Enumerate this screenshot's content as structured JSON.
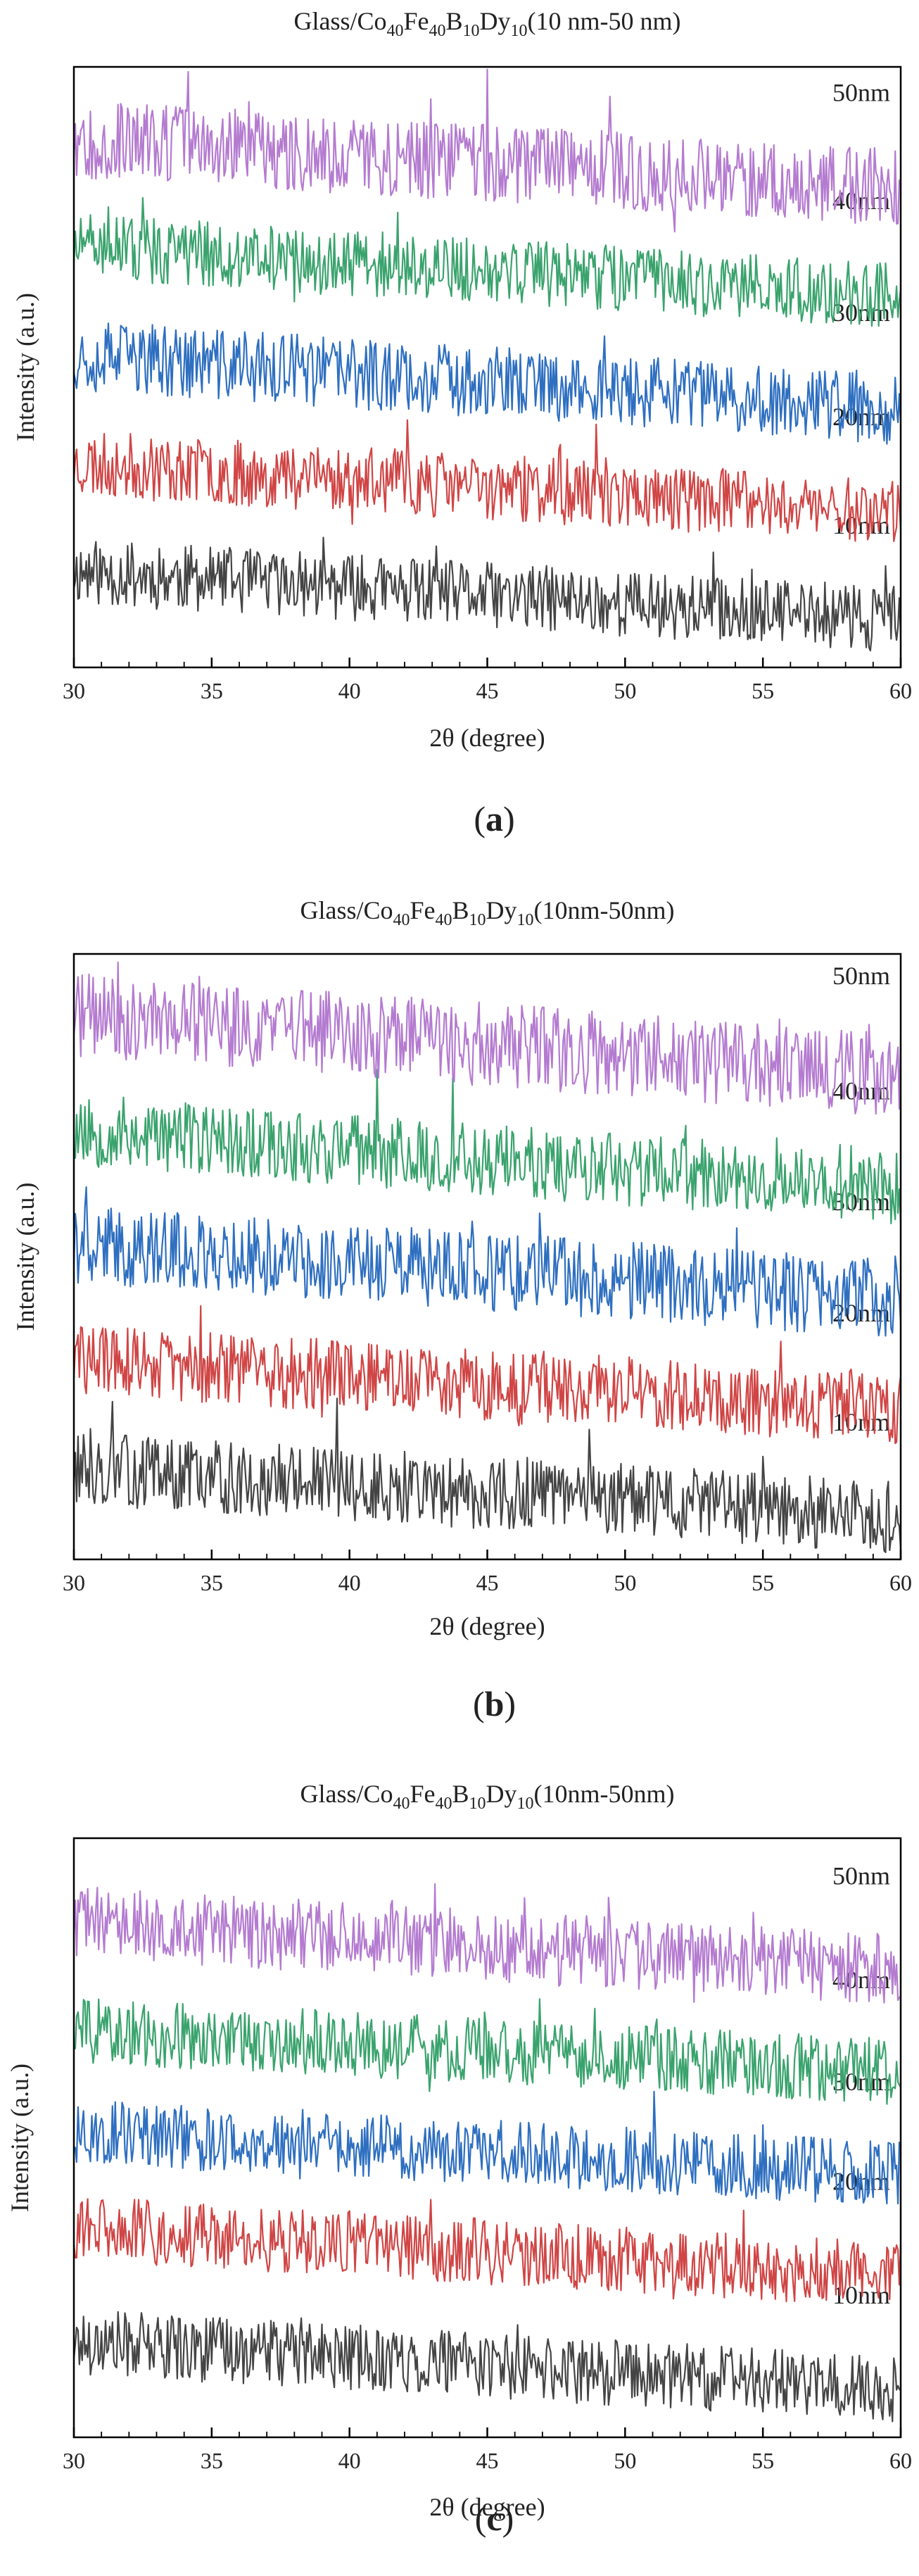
{
  "chart_data": [
    {
      "panel": "(a)",
      "panel_letter": "a",
      "type": "line",
      "title_parts": [
        "Glass/Co",
        "40",
        "Fe",
        "40",
        "B",
        "10",
        "Dy",
        "10",
        "(10 nm-50 nm)"
      ],
      "xlabel": "2θ (degree)",
      "ylabel": "Intensity (a.u.)",
      "xlim": [
        30,
        60
      ],
      "x_ticks": [
        30,
        35,
        40,
        45,
        50,
        55,
        60
      ],
      "ylim": [
        0,
        10
      ],
      "series": [
        {
          "name": "10nm",
          "color": "#444444",
          "start": 1.6,
          "end": 0.8,
          "noise": 0.55,
          "seed": 11
        },
        {
          "name": "20nm",
          "color": "#d04545",
          "start": 3.4,
          "end": 2.6,
          "noise": 0.55,
          "seed": 23
        },
        {
          "name": "30nm",
          "color": "#2e6fc0",
          "start": 5.2,
          "end": 4.3,
          "noise": 0.6,
          "seed": 37
        },
        {
          "name": "40nm",
          "color": "#3aa36d",
          "start": 7.0,
          "end": 6.2,
          "noise": 0.55,
          "seed": 51
        },
        {
          "name": "50nm",
          "color": "#b47bd0",
          "start": 8.8,
          "end": 8.0,
          "noise": 0.65,
          "seed": 67
        }
      ]
    },
    {
      "panel": "(b)",
      "panel_letter": "b",
      "type": "line",
      "title_parts": [
        "Glass/Co",
        "40",
        "Fe",
        "40",
        "B",
        "10",
        "Dy",
        "10",
        "(10nm-50nm)"
      ],
      "xlabel": "2θ (degree)",
      "ylabel": "Intensity (a.u.)",
      "xlim": [
        30,
        60
      ],
      "x_ticks": [
        30,
        35,
        40,
        45,
        50,
        55,
        60
      ],
      "ylim": [
        0,
        10
      ],
      "series": [
        {
          "name": "10nm",
          "color": "#444444",
          "start": 1.5,
          "end": 0.7,
          "noise": 0.6,
          "seed": 13
        },
        {
          "name": "20nm",
          "color": "#d04545",
          "start": 3.3,
          "end": 2.5,
          "noise": 0.6,
          "seed": 29
        },
        {
          "name": "30nm",
          "color": "#2e6fc0",
          "start": 5.2,
          "end": 4.3,
          "noise": 0.65,
          "seed": 41
        },
        {
          "name": "40nm",
          "color": "#3aa36d",
          "start": 7.1,
          "end": 6.1,
          "noise": 0.6,
          "seed": 53
        },
        {
          "name": "50nm",
          "color": "#b47bd0",
          "start": 9.0,
          "end": 8.0,
          "noise": 0.7,
          "seed": 71
        }
      ]
    },
    {
      "panel": "(c)",
      "panel_letter": "c",
      "type": "line",
      "title_parts": [
        "Glass/Co",
        "40",
        "Fe",
        "40",
        "B",
        "10",
        "Dy",
        "10",
        "(10nm-50nm)"
      ],
      "xlabel": "2θ (degree)",
      "ylabel": "Intensity (a.u.)",
      "xlim": [
        30,
        60
      ],
      "x_ticks": [
        30,
        35,
        40,
        45,
        50,
        55,
        60
      ],
      "ylim": [
        0,
        10
      ],
      "series": [
        {
          "name": "10nm",
          "color": "#444444",
          "start": 1.6,
          "end": 0.8,
          "noise": 0.55,
          "seed": 17
        },
        {
          "name": "20nm",
          "color": "#d04545",
          "start": 3.5,
          "end": 2.7,
          "noise": 0.55,
          "seed": 31
        },
        {
          "name": "30nm",
          "color": "#2e6fc0",
          "start": 5.1,
          "end": 4.4,
          "noise": 0.55,
          "seed": 43
        },
        {
          "name": "40nm",
          "color": "#3aa36d",
          "start": 6.8,
          "end": 6.1,
          "noise": 0.55,
          "seed": 59
        },
        {
          "name": "50nm",
          "color": "#b47bd0",
          "start": 8.6,
          "end": 7.8,
          "noise": 0.6,
          "seed": 73
        }
      ]
    }
  ]
}
